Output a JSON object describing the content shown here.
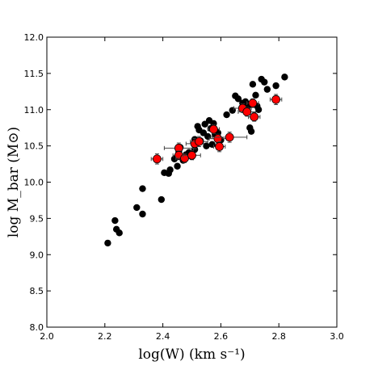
{
  "chart_data": {
    "type": "scatter",
    "xlabel": "log(W)  (km s⁻¹)",
    "ylabel": "log  M_bar  (M⊙)",
    "xlim": [
      2.0,
      3.0
    ],
    "ylim": [
      8.0,
      12.0
    ],
    "xticks": [
      "2.0",
      "2.2",
      "2.4",
      "2.6",
      "2.8",
      "3.0"
    ],
    "yticks": [
      "8.0",
      "8.5",
      "9.0",
      "9.5",
      "10.0",
      "10.5",
      "11.0",
      "11.5",
      "12.0"
    ],
    "grid": false,
    "colors": {
      "black_series": "#000000",
      "red_series": "#ff0000",
      "error_bars": "#444444"
    },
    "series": [
      {
        "marker": "black-circle",
        "points": [
          [
            2.21,
            9.16
          ],
          [
            2.235,
            9.47
          ],
          [
            2.24,
            9.35
          ],
          [
            2.25,
            9.3
          ],
          [
            2.31,
            9.65
          ],
          [
            2.33,
            9.56
          ],
          [
            2.33,
            9.91
          ],
          [
            2.395,
            9.76
          ],
          [
            2.405,
            10.13
          ],
          [
            2.42,
            10.12
          ],
          [
            2.425,
            10.17
          ],
          [
            2.44,
            10.32
          ],
          [
            2.45,
            10.22
          ],
          [
            2.455,
            10.42
          ],
          [
            2.46,
            10.48
          ],
          [
            2.47,
            10.3
          ],
          [
            2.48,
            10.38
          ],
          [
            2.49,
            10.41
          ],
          [
            2.5,
            10.35
          ],
          [
            2.51,
            10.45
          ],
          [
            2.51,
            10.59
          ],
          [
            2.52,
            10.77
          ],
          [
            2.525,
            10.72
          ],
          [
            2.53,
            10.57
          ],
          [
            2.54,
            10.68
          ],
          [
            2.545,
            10.8
          ],
          [
            2.55,
            10.5
          ],
          [
            2.555,
            10.63
          ],
          [
            2.56,
            10.85
          ],
          [
            2.565,
            10.74
          ],
          [
            2.57,
            10.52
          ],
          [
            2.575,
            10.81
          ],
          [
            2.58,
            10.66
          ],
          [
            2.59,
            10.68
          ],
          [
            2.6,
            10.58
          ],
          [
            2.62,
            10.93
          ],
          [
            2.64,
            10.99
          ],
          [
            2.65,
            11.19
          ],
          [
            2.66,
            11.15
          ],
          [
            2.675,
            11.09
          ],
          [
            2.685,
            11.11
          ],
          [
            2.695,
            11.06
          ],
          [
            2.7,
            10.75
          ],
          [
            2.705,
            10.7
          ],
          [
            2.71,
            11.35
          ],
          [
            2.72,
            11.2
          ],
          [
            2.725,
            11.05
          ],
          [
            2.73,
            11.0
          ],
          [
            2.74,
            11.42
          ],
          [
            2.75,
            11.38
          ],
          [
            2.76,
            11.28
          ],
          [
            2.79,
            11.33
          ],
          [
            2.82,
            11.45
          ]
        ]
      },
      {
        "marker": "red-circle-with-error-bars",
        "points": [
          {
            "x": 2.38,
            "y": 10.32,
            "xerr": 0.02,
            "yerr": 0.07
          },
          {
            "x": 2.455,
            "y": 10.47,
            "xerr": 0.05,
            "yerr": 0.07
          },
          {
            "x": 2.455,
            "y": 10.37,
            "xerr": 0.02,
            "yerr": 0.06
          },
          {
            "x": 2.475,
            "y": 10.33,
            "xerr": 0.03,
            "yerr": 0.06
          },
          {
            "x": 2.5,
            "y": 10.37,
            "xerr": 0.03,
            "yerr": 0.06
          },
          {
            "x": 2.51,
            "y": 10.53,
            "xerr": 0.03,
            "yerr": 0.07
          },
          {
            "x": 2.525,
            "y": 10.56,
            "xerr": 0.03,
            "yerr": 0.07
          },
          {
            "x": 2.575,
            "y": 10.73,
            "xerr": 0.02,
            "yerr": 0.06
          },
          {
            "x": 2.59,
            "y": 10.6,
            "xerr": 0.03,
            "yerr": 0.06
          },
          {
            "x": 2.595,
            "y": 10.49,
            "xerr": 0.02,
            "yerr": 0.07
          },
          {
            "x": 2.63,
            "y": 10.62,
            "xerr": 0.06,
            "yerr": 0.07
          },
          {
            "x": 2.675,
            "y": 11.02,
            "xerr": 0.03,
            "yerr": 0.06
          },
          {
            "x": 2.69,
            "y": 10.97,
            "xerr": 0.03,
            "yerr": 0.06
          },
          {
            "x": 2.71,
            "y": 11.09,
            "xerr": 0.02,
            "yerr": 0.06
          },
          {
            "x": 2.715,
            "y": 10.9,
            "xerr": 0.02,
            "yerr": 0.06
          },
          {
            "x": 2.79,
            "y": 11.14,
            "xerr": 0.02,
            "yerr": 0.07
          }
        ]
      }
    ]
  }
}
